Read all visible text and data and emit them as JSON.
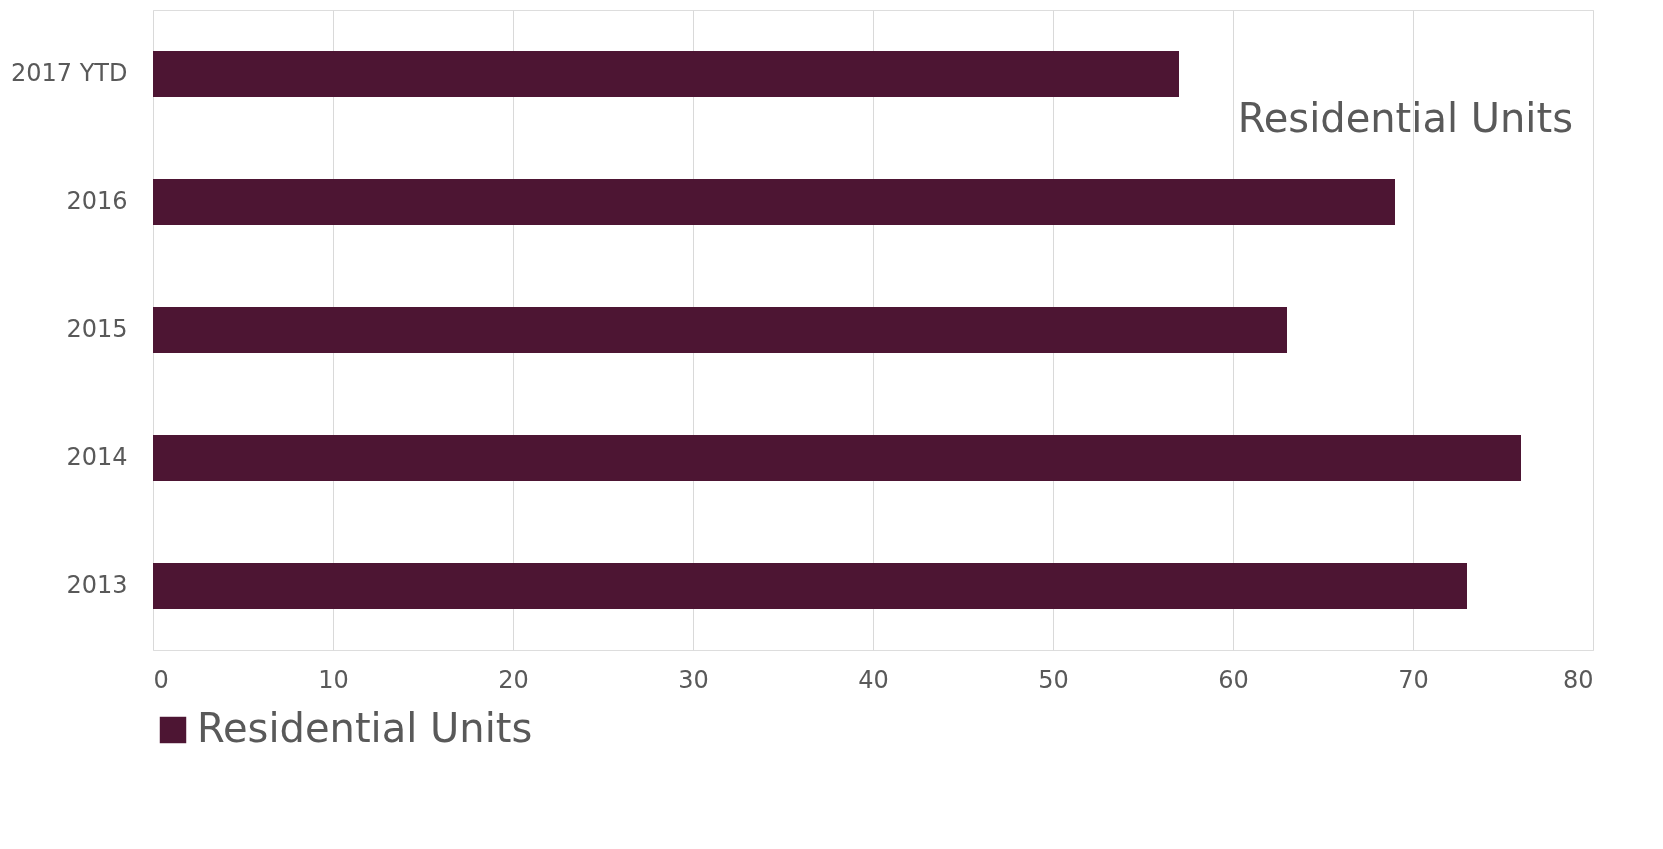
{
  "chart_data": {
    "type": "bar",
    "orientation": "horizontal",
    "title": "Residential Units",
    "categories": [
      "2017 YTD",
      "2016",
      "2015",
      "2014",
      "2013"
    ],
    "series": [
      {
        "name": "Residential Units",
        "color": "#4d1533",
        "values": [
          57,
          69,
          63,
          76,
          73
        ]
      }
    ],
    "xlim": [
      0,
      80
    ],
    "xticks": [
      0,
      10,
      20,
      30,
      40,
      50,
      60,
      70,
      80
    ],
    "grid": "x",
    "legend": "bottom"
  }
}
